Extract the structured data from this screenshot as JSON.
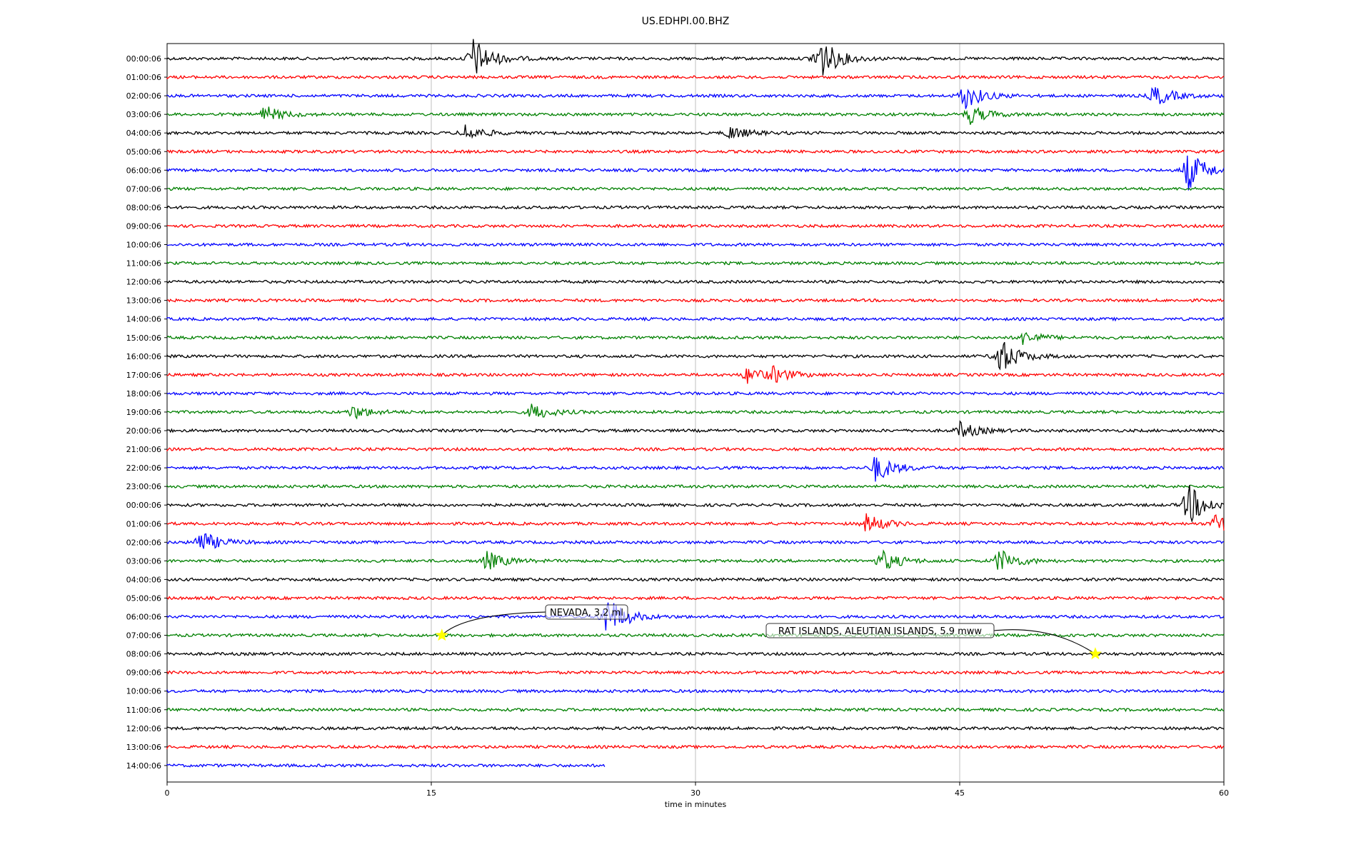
{
  "chart_data": {
    "type": "line",
    "title": "US.EDHPI.00.BHZ",
    "xlabel": "time in minutes",
    "ylabel": "",
    "xlim": [
      0,
      60
    ],
    "xticks": [
      0,
      15,
      30,
      45,
      60
    ],
    "grid": "vertical",
    "row_labels": [
      "00:00:06",
      "01:00:06",
      "02:00:06",
      "03:00:06",
      "04:00:06",
      "05:00:06",
      "06:00:06",
      "07:00:06",
      "08:00:06",
      "09:00:06",
      "10:00:06",
      "11:00:06",
      "12:00:06",
      "13:00:06",
      "14:00:06",
      "15:00:06",
      "16:00:06",
      "17:00:06",
      "18:00:06",
      "19:00:06",
      "20:00:06",
      "21:00:06",
      "22:00:06",
      "23:00:06",
      "00:00:06",
      "01:00:06",
      "02:00:06",
      "03:00:06",
      "04:00:06",
      "05:00:06",
      "06:00:06",
      "07:00:06",
      "08:00:06",
      "09:00:06",
      "10:00:06",
      "11:00:06",
      "12:00:06",
      "13:00:06",
      "14:00:06"
    ],
    "colors": [
      "#000000",
      "#ff0000",
      "#0000ff",
      "#008000"
    ],
    "last_row_end_minute": 24.9,
    "events": [
      {
        "row": 0,
        "minute": 17.3,
        "amplitude": 1.6
      },
      {
        "row": 0,
        "minute": 36.9,
        "amplitude": 1.8
      },
      {
        "row": 2,
        "minute": 45.2,
        "amplitude": 1.0
      },
      {
        "row": 2,
        "minute": 56.0,
        "amplitude": 0.8
      },
      {
        "row": 3,
        "minute": 5.5,
        "amplitude": 0.6
      },
      {
        "row": 3,
        "minute": 45.5,
        "amplitude": 0.7
      },
      {
        "row": 4,
        "minute": 16.9,
        "amplitude": 0.6
      },
      {
        "row": 4,
        "minute": 31.9,
        "amplitude": 0.5
      },
      {
        "row": 6,
        "minute": 57.9,
        "amplitude": 1.5
      },
      {
        "row": 15,
        "minute": 48.6,
        "amplitude": 0.5
      },
      {
        "row": 16,
        "minute": 47.2,
        "amplitude": 1.4
      },
      {
        "row": 17,
        "minute": 32.9,
        "amplitude": 0.6
      },
      {
        "row": 17,
        "minute": 34.4,
        "amplitude": 0.5
      },
      {
        "row": 19,
        "minute": 10.5,
        "amplitude": 0.5
      },
      {
        "row": 19,
        "minute": 20.7,
        "amplitude": 0.6
      },
      {
        "row": 20,
        "minute": 45.0,
        "amplitude": 0.6
      },
      {
        "row": 22,
        "minute": 40.2,
        "amplitude": 1.0
      },
      {
        "row": 24,
        "minute": 57.9,
        "amplitude": 1.6
      },
      {
        "row": 25,
        "minute": 39.7,
        "amplitude": 0.7
      },
      {
        "row": 25,
        "minute": 59.5,
        "amplitude": 0.7
      },
      {
        "row": 26,
        "minute": 1.8,
        "amplitude": 0.9
      },
      {
        "row": 27,
        "minute": 18.1,
        "amplitude": 0.7
      },
      {
        "row": 27,
        "minute": 40.5,
        "amplitude": 0.8
      },
      {
        "row": 27,
        "minute": 47.2,
        "amplitude": 0.9
      },
      {
        "row": 30,
        "minute": 24.9,
        "amplitude": 1.6
      }
    ],
    "annotations": [
      {
        "text": "NEVADA, 3.2 ml",
        "row": 31,
        "minute": 15.6
      },
      {
        "text": "RAT ISLANDS, ALEUTIAN ISLANDS, 5.9 mww",
        "row": 32,
        "minute": 52.7
      }
    ],
    "marker_color": "#ffff00"
  }
}
